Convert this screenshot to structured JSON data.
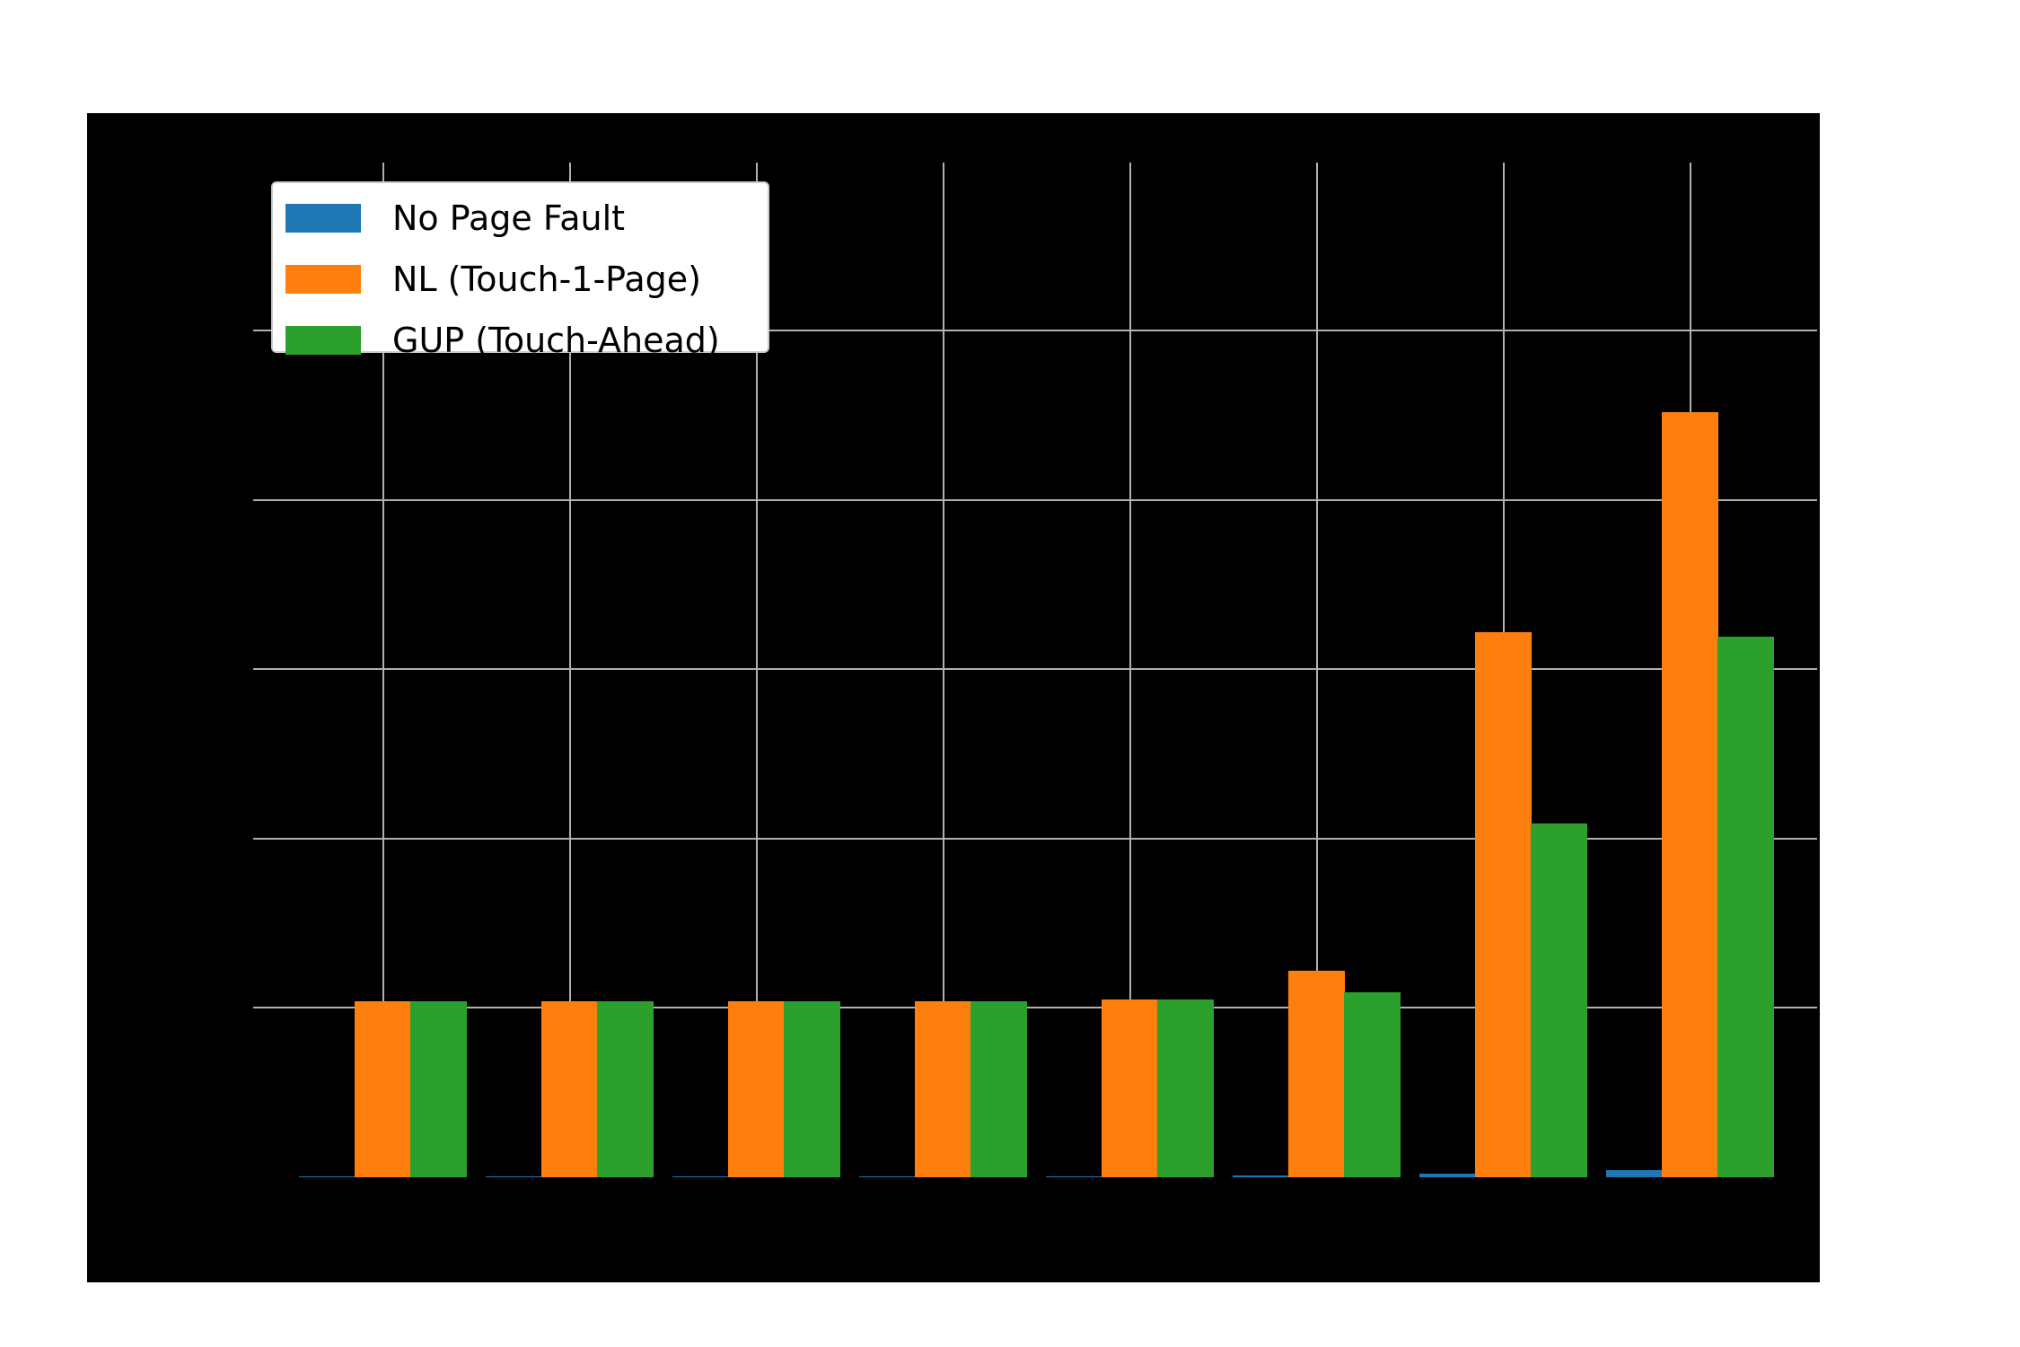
{
  "chart_data": {
    "type": "bar",
    "title": "",
    "xlabel": "",
    "ylabel": "",
    "categories": [
      "",
      "",
      "",
      "",
      "",
      "",
      "",
      ""
    ],
    "ylim": [
      0,
      6
    ],
    "yticks": [
      0,
      1,
      2,
      3,
      4,
      5
    ],
    "grid": true,
    "legend_position": "upper left",
    "background": "#000000",
    "series": [
      {
        "name": "No Page Fault",
        "color": "#1f77b4",
        "values": [
          0.002,
          0.002,
          0.002,
          0.002,
          0.005,
          0.01,
          0.02,
          0.042
        ]
      },
      {
        "name": "NL (Touch-1-Page)",
        "color": "#ff7f0e",
        "values": [
          1.04,
          1.04,
          1.04,
          1.04,
          1.05,
          1.22,
          3.22,
          4.52
        ]
      },
      {
        "name": "GUP (Touch-Ahead)",
        "color": "#2ca02c",
        "values": [
          1.04,
          1.04,
          1.04,
          1.04,
          1.05,
          1.09,
          2.09,
          3.19
        ]
      }
    ]
  },
  "legend": {
    "items": [
      {
        "label": "No Page Fault",
        "color": "#1f77b4"
      },
      {
        "label": "NL (Touch-1-Page)",
        "color": "#ff7f0e"
      },
      {
        "label": "GUP (Touch-Ahead)",
        "color": "#2ca02c"
      }
    ]
  }
}
